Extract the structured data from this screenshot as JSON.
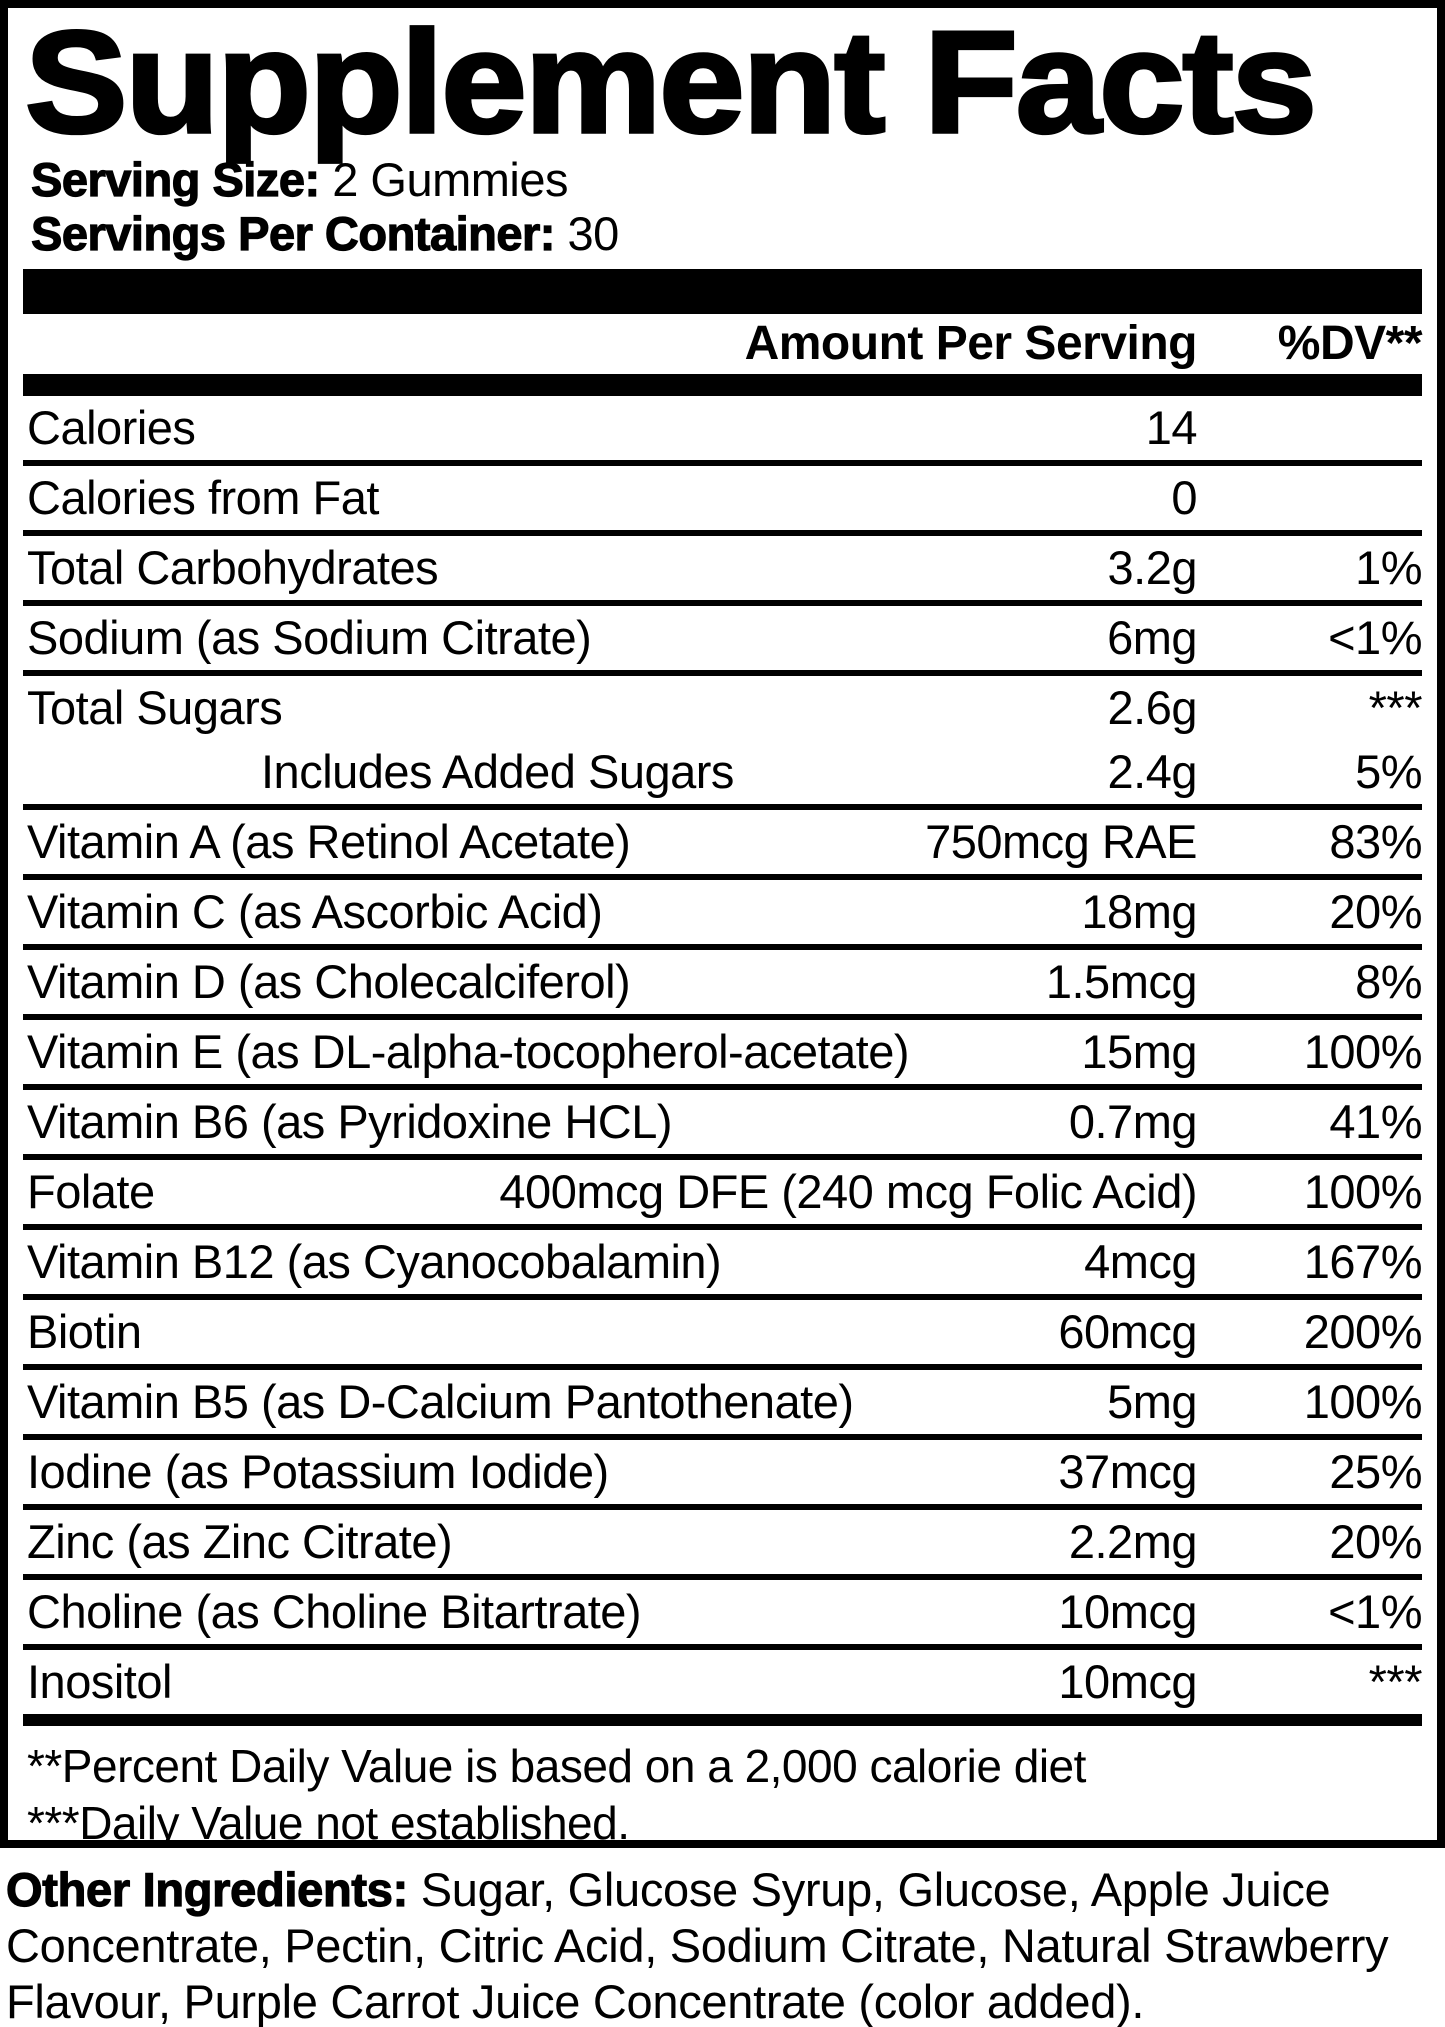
{
  "title": "Supplement Facts",
  "serving": {
    "size_label": "Serving Size:",
    "size_value": "2 Gummies",
    "per_container_label": "Servings Per Container:",
    "per_container_value": "30"
  },
  "table": {
    "amount_header": "Amount Per Serving",
    "dv_header": "%DV**",
    "rows": [
      {
        "name": "Calories",
        "amount": "14",
        "dv": ""
      },
      {
        "name": "Calories from Fat",
        "amount": "0",
        "dv": ""
      },
      {
        "name": "Total Carbohydrates",
        "amount": "3.2g",
        "dv": "1%"
      },
      {
        "name": "Sodium (as Sodium Citrate)",
        "amount": "6mg",
        "dv": "<1%"
      },
      {
        "name": "Total Sugars",
        "amount": "2.6g",
        "dv": "***",
        "no_border": true
      },
      {
        "name": "Includes Added Sugars",
        "amount": "2.4g",
        "dv": "5%",
        "indent": true
      },
      {
        "name": "Vitamin A (as Retinol Acetate)",
        "amount": "750mcg RAE",
        "dv": "83%"
      },
      {
        "name": "Vitamin C (as Ascorbic Acid)",
        "amount": "18mg",
        "dv": "20%"
      },
      {
        "name": "Vitamin D (as Cholecalciferol)",
        "amount": "1.5mcg",
        "dv": "8%"
      },
      {
        "name": "Vitamin E (as DL-alpha-tocopherol-acetate)",
        "amount": "15mg",
        "dv": "100%"
      },
      {
        "name": "Vitamin B6 (as Pyridoxine HCL)",
        "amount": "0.7mg",
        "dv": "41%"
      },
      {
        "name": "Folate",
        "amount": "400mcg DFE (240 mcg Folic Acid)",
        "dv": "100%"
      },
      {
        "name": "Vitamin B12 (as Cyanocobalamin)",
        "amount": "4mcg",
        "dv": "167%"
      },
      {
        "name": "Biotin",
        "amount": "60mcg",
        "dv": "200%"
      },
      {
        "name": "Vitamin B5 (as D-Calcium Pantothenate)",
        "amount": "5mg",
        "dv": "100%"
      },
      {
        "name": "Iodine (as Potassium Iodide)",
        "amount": "37mcg",
        "dv": "25%"
      },
      {
        "name": "Zinc (as Zinc Citrate)",
        "amount": "2.2mg",
        "dv": "20%"
      },
      {
        "name": "Choline (as Choline Bitartrate)",
        "amount": "10mcg",
        "dv": "<1%"
      },
      {
        "name": "Inositol",
        "amount": "10mcg",
        "dv": "***"
      }
    ]
  },
  "footnotes": {
    "line1": "**Percent Daily Value is based on a 2,000 calorie diet",
    "line2": "***Daily Value not established."
  },
  "other_ingredients": {
    "label": "Other Ingredients:",
    "text": " Sugar, Glucose Syrup, Glucose, Apple Juice Concentrate, Pectin, Citric Acid, Sodium Citrate, Natural Strawberry Flavour, Purple Carrot Juice Concentrate (color added)."
  },
  "colors": {
    "text": "#000000",
    "background": "#ffffff"
  }
}
